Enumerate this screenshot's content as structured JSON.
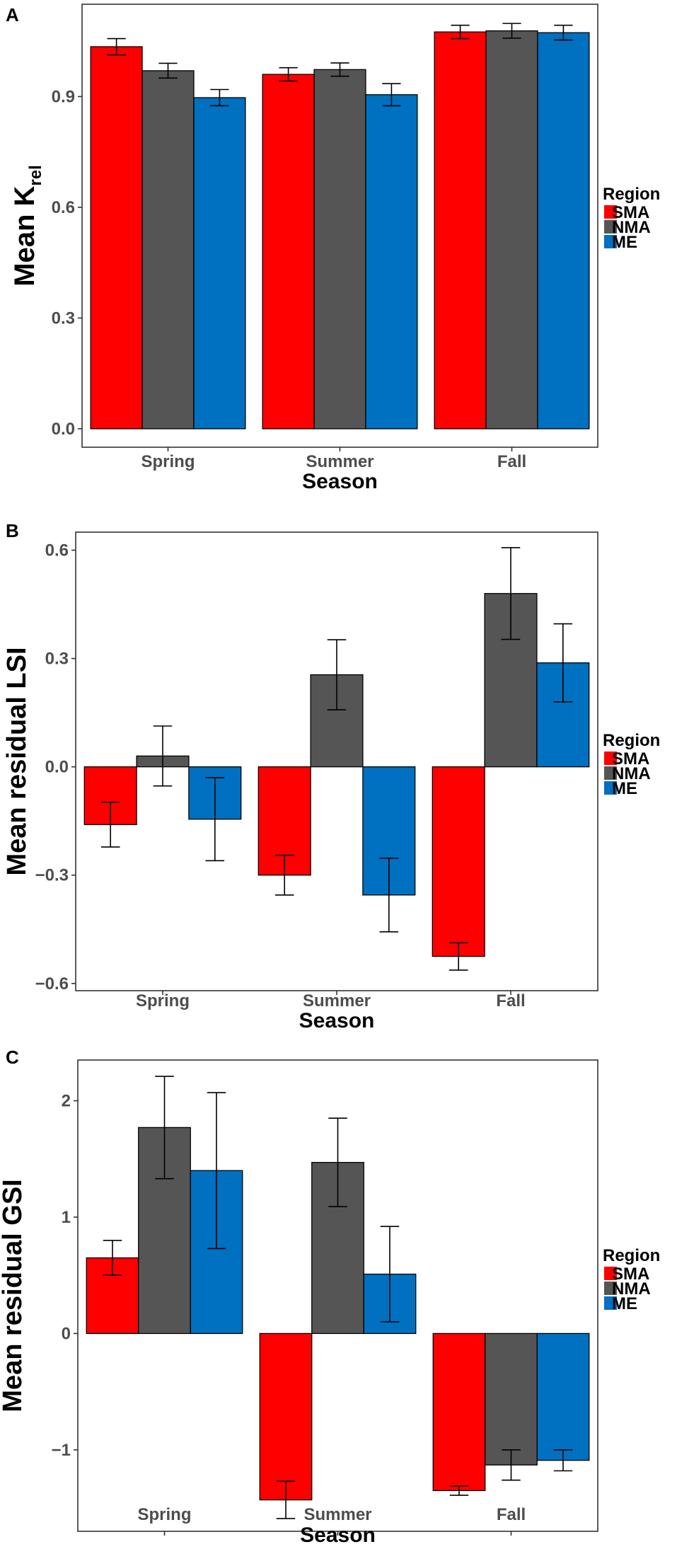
{
  "colors": {
    "SMA": "#ff0000",
    "NMA": "#555555",
    "ME": "#0070c0"
  },
  "chart_data": [
    {
      "type": "bar",
      "panel": "A",
      "title": "",
      "xlabel": "Season",
      "ylabel": "Mean K",
      "ylabel_sub": "rel",
      "categories": [
        "Spring",
        "Summer",
        "Fall"
      ],
      "ylim": [
        -0.05,
        1.15
      ],
      "yticks": [
        0.0,
        0.3,
        0.6,
        0.9
      ],
      "ytick_labels": [
        "0.0",
        "0.3",
        "0.6",
        "0.9"
      ],
      "legend": {
        "title": "Region",
        "position": "right"
      },
      "series": [
        {
          "name": "SMA",
          "values": [
            1.035,
            0.96,
            1.075
          ],
          "errors": [
            0.022,
            0.018,
            0.018
          ]
        },
        {
          "name": "NMA",
          "values": [
            0.97,
            0.973,
            1.078
          ],
          "errors": [
            0.02,
            0.018,
            0.02
          ]
        },
        {
          "name": "ME",
          "values": [
            0.897,
            0.905,
            1.073
          ],
          "errors": [
            0.022,
            0.03,
            0.02
          ]
        }
      ]
    },
    {
      "type": "bar",
      "panel": "B",
      "title": "",
      "xlabel": "Season",
      "ylabel": "Mean residual LSI",
      "ylabel_sub": "",
      "categories": [
        "Spring",
        "Summer",
        "Fall"
      ],
      "ylim": [
        -0.62,
        0.65
      ],
      "yticks": [
        -0.6,
        -0.3,
        0.0,
        0.3,
        0.6
      ],
      "ytick_labels": [
        "−0.6",
        "−0.3",
        "0.0",
        "0.3",
        "0.6"
      ],
      "legend": {
        "title": "Region",
        "position": "right"
      },
      "series": [
        {
          "name": "SMA",
          "values": [
            -0.16,
            -0.3,
            -0.525
          ],
          "errors": [
            0.062,
            0.055,
            0.038
          ]
        },
        {
          "name": "NMA",
          "values": [
            0.03,
            0.255,
            0.48
          ],
          "errors": [
            0.083,
            0.097,
            0.127
          ]
        },
        {
          "name": "ME",
          "values": [
            -0.145,
            -0.355,
            0.288
          ],
          "errors": [
            0.115,
            0.102,
            0.108
          ]
        }
      ]
    },
    {
      "type": "bar",
      "panel": "C",
      "title": "",
      "xlabel": "Season",
      "ylabel": "Mean residual GSI",
      "ylabel_sub": "",
      "categories": [
        "Spring",
        "Summer",
        "Fall"
      ],
      "ylim": [
        -1.7,
        2.35
      ],
      "yticks": [
        -1,
        0,
        1,
        2
      ],
      "ytick_labels": [
        "−1",
        "0",
        "1",
        "2"
      ],
      "legend": {
        "title": "Region",
        "position": "right"
      },
      "series": [
        {
          "name": "SMA",
          "values": [
            0.65,
            -1.43,
            -1.35
          ],
          "errors": [
            0.15,
            0.16,
            0.04
          ]
        },
        {
          "name": "NMA",
          "values": [
            1.77,
            1.47,
            -1.13
          ],
          "errors": [
            0.44,
            0.38,
            0.13
          ]
        },
        {
          "name": "ME",
          "values": [
            1.4,
            0.51,
            -1.09
          ],
          "errors": [
            0.67,
            0.41,
            0.09
          ]
        }
      ]
    }
  ]
}
